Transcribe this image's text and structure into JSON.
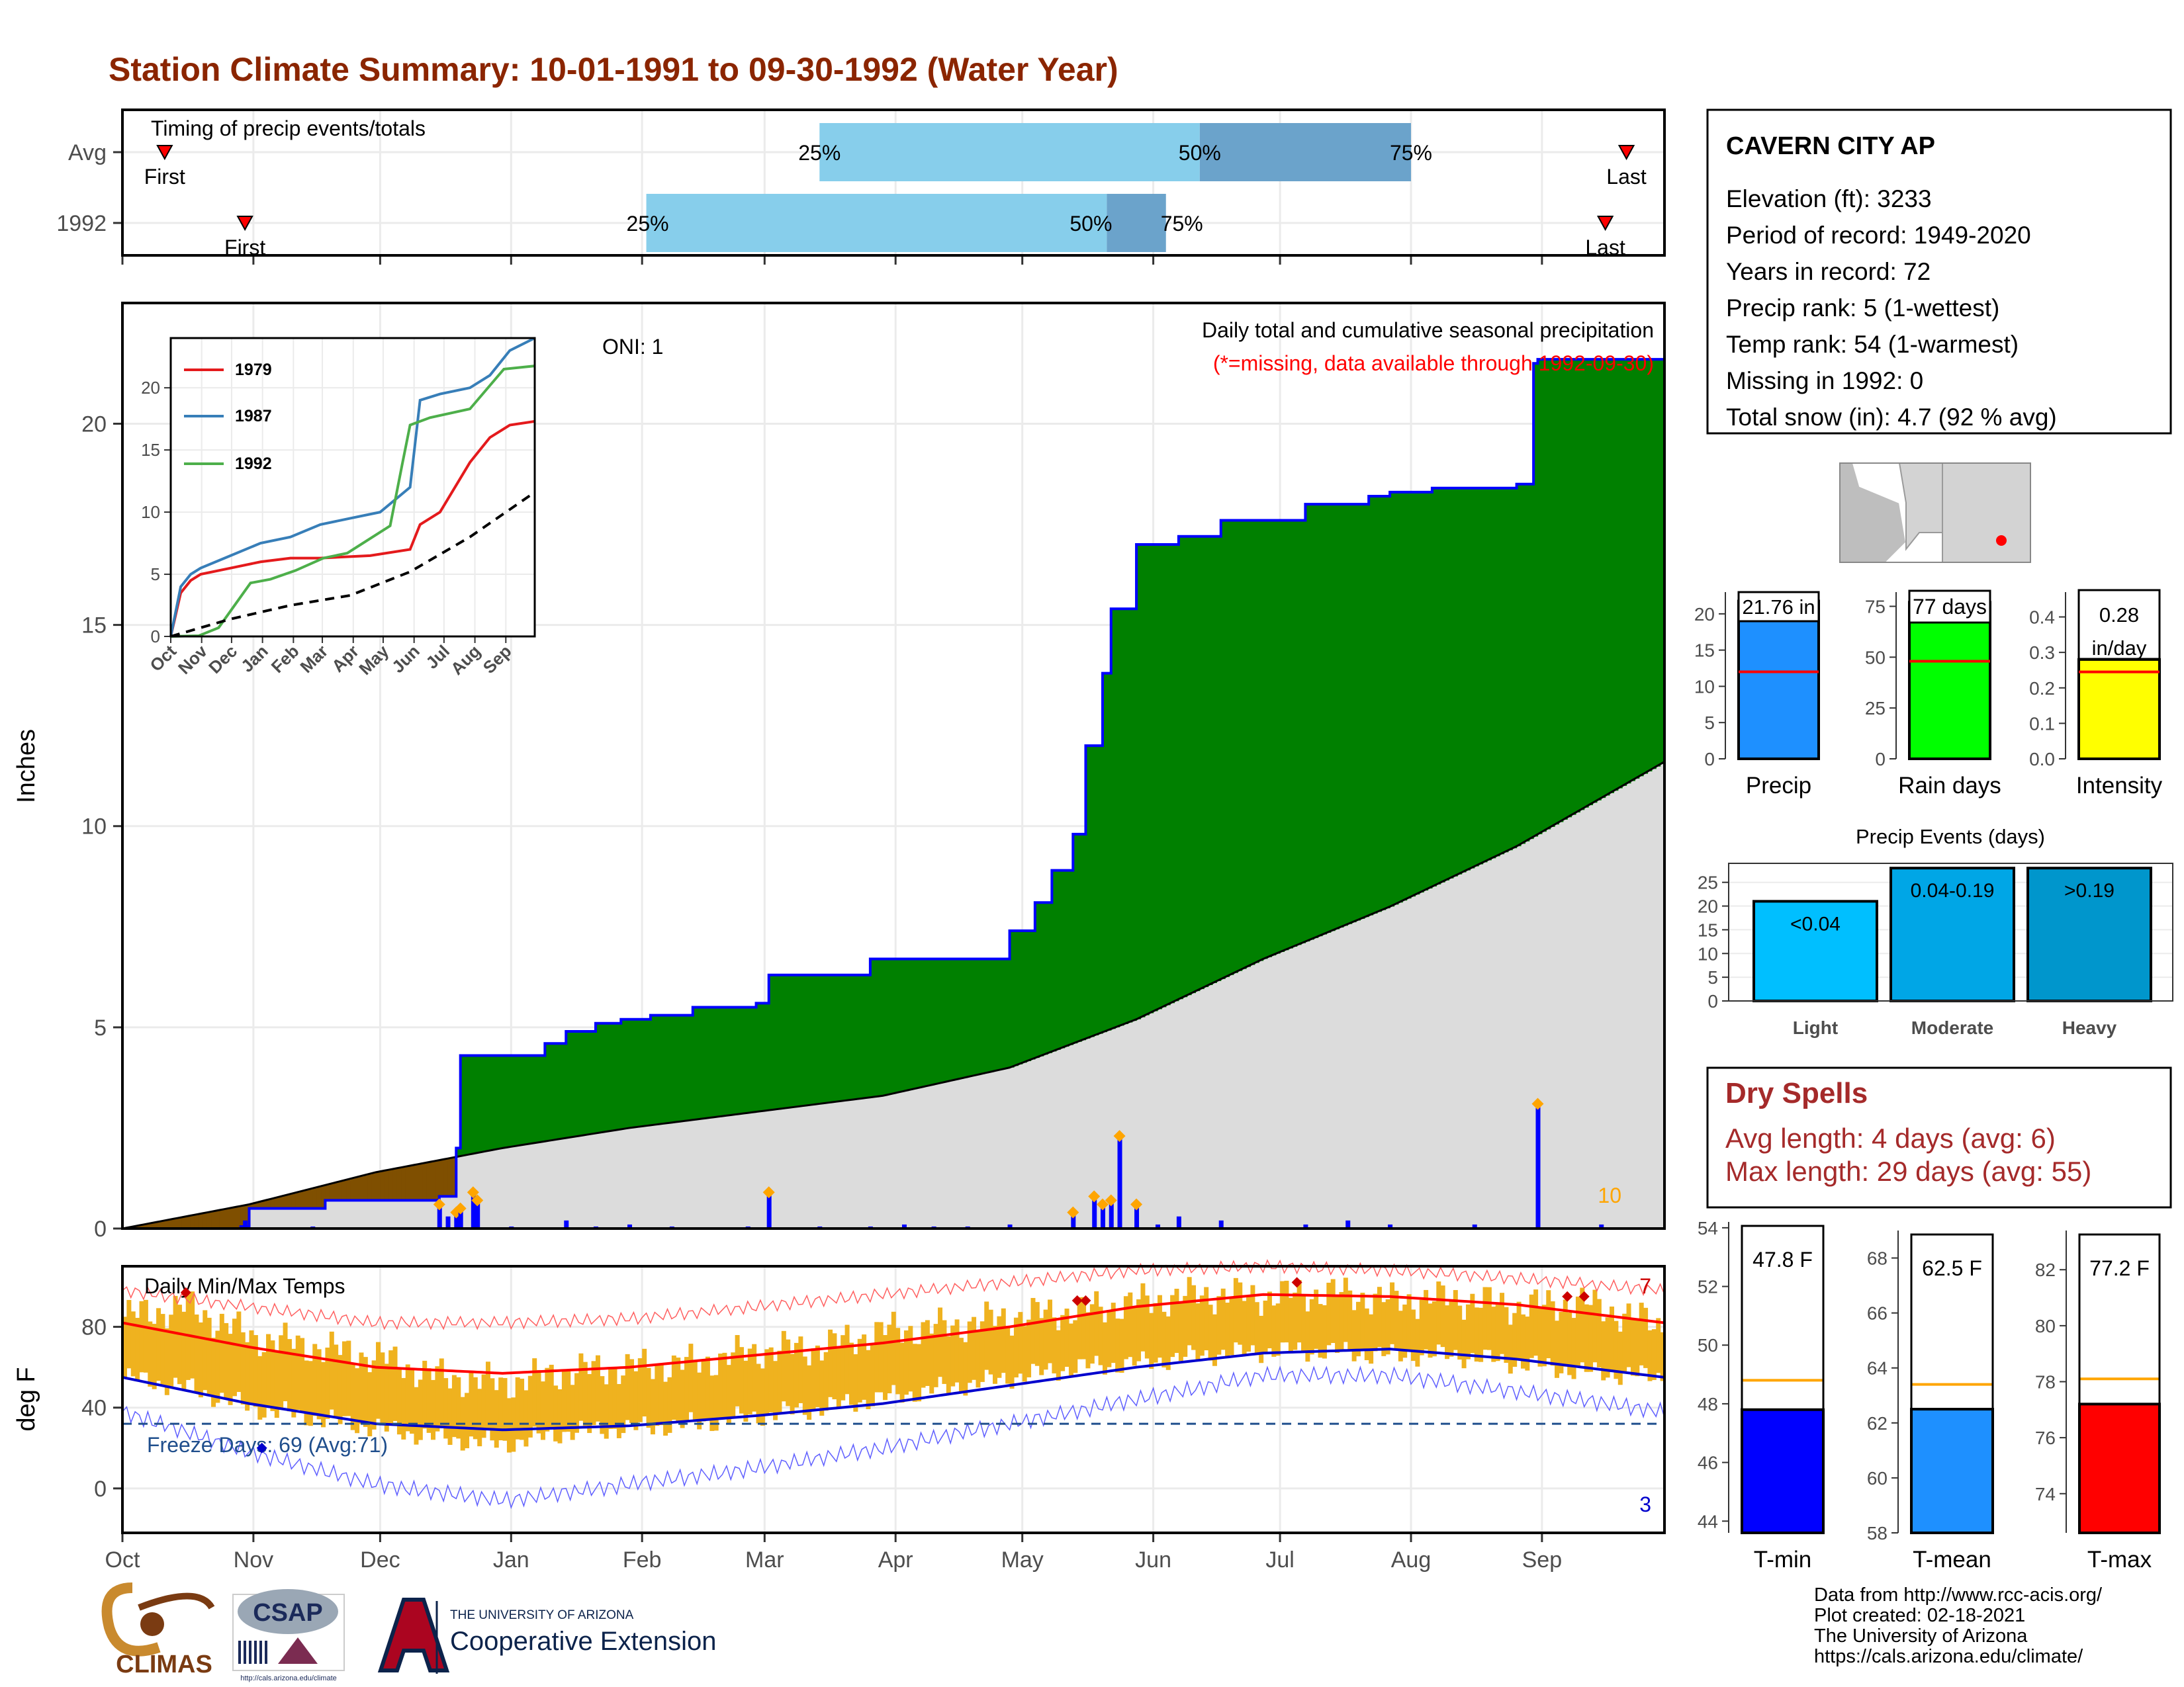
{
  "title": "Station Climate Summary: 10-01-1991 to 09-30-1992 (Water Year)",
  "colors": {
    "title": "#8B2500",
    "quartile_light": "#87CEEB",
    "quartile_dark": "#6BA3CB",
    "cumulative_fill": "#008000",
    "deficit_fill": "#7F4F00",
    "avg_fill": "#DCDCDC",
    "precip_bar": "#0000FF",
    "tmax_line": "#FF0000",
    "tmin_line": "#0000CD",
    "daily_range": "#EFB21F",
    "dry_spells": "#A52A2A"
  },
  "timing": {
    "title": "Timing of precip events/totals",
    "rows": [
      {
        "label": "Avg",
        "first_day": 10,
        "first_label": "First",
        "last_day": 356,
        "last_label": "Last",
        "q25_day": 165,
        "q50_day": 255,
        "q75_day": 305,
        "q25_label": "25%",
        "q50_label": "50%",
        "q75_label": "75%"
      },
      {
        "label": "1992",
        "first_day": 29,
        "first_label": "First",
        "last_day": 351,
        "last_label": "Last",
        "q25_day": 124,
        "q50_day": 233,
        "q75_day": 247,
        "q25_label": "25%",
        "q50_label": "50%",
        "q75_label": "75%"
      }
    ]
  },
  "chart_data": [
    {
      "type": "area",
      "title": "Daily total and cumulative seasonal precipitation",
      "subtitle": "(*=missing, data available through 1992-09-30)",
      "ylabel": "Inches",
      "ylim": [
        0,
        23
      ],
      "yticks": [
        0,
        5,
        10,
        15,
        20
      ],
      "xticks": [
        "Oct",
        "Nov",
        "Dec",
        "Jan",
        "Feb",
        "Mar",
        "Apr",
        "May",
        "Jun",
        "Jul",
        "Aug",
        "Sep"
      ],
      "oni_label": "ONI: 1",
      "count_label": "10",
      "cumulative_1992": {
        "day": [
          0,
          28,
          30,
          48,
          75,
          79,
          80,
          100,
          105,
          112,
          118,
          125,
          135,
          150,
          153,
          177,
          210,
          216,
          220,
          225,
          228,
          232,
          234,
          240,
          250,
          260,
          280,
          295,
          300,
          310,
          330,
          334,
          335,
          365
        ],
        "value": [
          0,
          0.05,
          0.5,
          0.7,
          0.8,
          2.0,
          4.3,
          4.6,
          4.9,
          5.1,
          5.2,
          5.3,
          5.5,
          5.6,
          6.3,
          6.7,
          7.4,
          8.1,
          8.9,
          9.8,
          12.0,
          13.8,
          15.4,
          17.0,
          17.2,
          17.6,
          18.0,
          18.2,
          18.3,
          18.4,
          18.5,
          21.5,
          21.6,
          21.76
        ]
      },
      "average_cumulative": {
        "day": [
          0,
          30,
          60,
          90,
          120,
          150,
          180,
          210,
          240,
          270,
          300,
          330,
          365
        ],
        "value": [
          0,
          0.6,
          1.4,
          2.0,
          2.5,
          2.9,
          3.3,
          4.0,
          5.2,
          6.7,
          8.0,
          9.5,
          11.6
        ]
      },
      "daily_precip": {
        "day": [
          29,
          45,
          75,
          77,
          79,
          80,
          83,
          84,
          92,
          105,
          112,
          120,
          130,
          148,
          153,
          165,
          177,
          185,
          192,
          200,
          210,
          225,
          230,
          232,
          234,
          236,
          240,
          245,
          250,
          260,
          280,
          290,
          300,
          320,
          335,
          350
        ],
        "value": [
          0.2,
          0.05,
          0.6,
          0.3,
          0.4,
          0.5,
          0.9,
          0.7,
          0.05,
          0.2,
          0.05,
          0.1,
          0.05,
          0.05,
          0.9,
          0.05,
          0.05,
          0.1,
          0.05,
          0.05,
          0.1,
          0.4,
          0.8,
          0.6,
          0.7,
          2.3,
          0.6,
          0.1,
          0.3,
          0.2,
          0.1,
          0.2,
          0.1,
          0.1,
          3.1,
          0.1
        ]
      },
      "inset": {
        "type": "line",
        "yticks": [
          0,
          5,
          10,
          15,
          20
        ],
        "xticks": [
          "Oct",
          "Nov",
          "Dec",
          "Jan",
          "Feb",
          "Mar",
          "Apr",
          "May",
          "Jun",
          "Jul",
          "Aug",
          "Sep"
        ],
        "series": [
          {
            "name": "1979",
            "color": "#E41A1C",
            "day": [
              0,
              10,
              20,
              30,
              60,
              90,
              120,
              150,
              200,
              240,
              250,
              270,
              300,
              320,
              340,
              365
            ],
            "value": [
              0,
              3.5,
              4.5,
              5.0,
              5.5,
              6.0,
              6.3,
              6.3,
              6.5,
              7.0,
              9.0,
              10.0,
              14.0,
              16.0,
              17.0,
              17.3
            ]
          },
          {
            "name": "1987",
            "color": "#377EB8",
            "day": [
              0,
              10,
              20,
              30,
              60,
              90,
              120,
              150,
              180,
              210,
              240,
              250,
              270,
              300,
              320,
              340,
              365
            ],
            "value": [
              0,
              4.0,
              5.0,
              5.5,
              6.5,
              7.5,
              8.0,
              9.0,
              9.5,
              10.0,
              12.0,
              19.0,
              19.5,
              20.0,
              21.0,
              23.0,
              24.0
            ]
          },
          {
            "name": "1992",
            "color": "#4DAF4A",
            "day": [
              0,
              28,
              48,
              80,
              100,
              125,
              153,
              177,
              220,
              232,
              240,
              260,
              300,
              334,
              365
            ],
            "value": [
              0,
              0.05,
              0.7,
              4.3,
              4.6,
              5.3,
              6.3,
              6.7,
              8.9,
              13.8,
              17.0,
              17.6,
              18.3,
              21.5,
              21.76
            ]
          },
          {
            "name": "",
            "color": "#000000",
            "dashed": true,
            "day": [
              0,
              60,
              120,
              180,
              240,
              300,
              365
            ],
            "value": [
              0,
              1.4,
              2.5,
              3.3,
              5.2,
              8.0,
              11.6
            ]
          }
        ]
      }
    },
    {
      "type": "line",
      "title": "Daily Min/Max Temps",
      "ylabel": "deg F",
      "ylim": [
        -22,
        110
      ],
      "yticks": [
        0,
        40,
        80
      ],
      "xticks": [
        "Oct",
        "Nov",
        "Dec",
        "Jan",
        "Feb",
        "Mar",
        "Apr",
        "May",
        "Jun",
        "Jul",
        "Aug",
        "Sep"
      ],
      "freeze_label": "Freeze Days: 69 (Avg:71)",
      "freeze_line": 32,
      "max_record_count": "7",
      "min_record_count": "3",
      "avg_tmax": {
        "day": [
          0,
          30,
          60,
          90,
          120,
          150,
          180,
          210,
          240,
          270,
          300,
          330,
          365
        ],
        "value": [
          82,
          70,
          60,
          57,
          60,
          66,
          72,
          80,
          90,
          96,
          95,
          91,
          82
        ]
      },
      "avg_tmin": {
        "day": [
          0,
          30,
          60,
          90,
          120,
          150,
          180,
          210,
          240,
          270,
          300,
          330,
          365
        ],
        "value": [
          55,
          42,
          32,
          29,
          31,
          36,
          42,
          51,
          60,
          67,
          69,
          64,
          55
        ]
      },
      "record_high": {
        "day": [
          0,
          30,
          60,
          90,
          120,
          150,
          180,
          210,
          240,
          270,
          300,
          330,
          365
        ],
        "value": [
          98,
          90,
          82,
          82,
          84,
          90,
          96,
          102,
          108,
          110,
          108,
          104,
          98
        ]
      },
      "record_low": {
        "day": [
          0,
          30,
          60,
          90,
          120,
          150,
          180,
          210,
          240,
          270,
          300,
          330,
          365
        ],
        "value": [
          38,
          18,
          2,
          -6,
          2,
          10,
          20,
          32,
          44,
          56,
          56,
          48,
          38
        ]
      },
      "obs_tmax_approx": {
        "day": [
          0,
          15,
          30,
          45,
          60,
          75,
          90,
          105,
          120,
          135,
          150,
          165,
          180,
          195,
          210,
          225,
          240,
          255,
          270,
          285,
          300,
          315,
          330,
          345,
          365
        ],
        "value": [
          85,
          90,
          75,
          70,
          65,
          55,
          52,
          58,
          60,
          62,
          68,
          70,
          78,
          80,
          85,
          88,
          92,
          96,
          95,
          97,
          93,
          94,
          90,
          92,
          80
        ]
      },
      "obs_tmin_approx": {
        "day": [
          0,
          15,
          30,
          45,
          60,
          75,
          90,
          105,
          120,
          135,
          150,
          165,
          180,
          195,
          210,
          225,
          240,
          255,
          270,
          285,
          300,
          315,
          330,
          345,
          365
        ],
        "value": [
          55,
          50,
          40,
          35,
          30,
          25,
          22,
          28,
          30,
          32,
          36,
          40,
          45,
          50,
          55,
          60,
          62,
          66,
          68,
          68,
          66,
          66,
          62,
          58,
          55
        ]
      }
    },
    {
      "type": "bar",
      "panel": "precip",
      "categories": [
        "Precip"
      ],
      "values": [
        21.76
      ],
      "avg": 12.0,
      "value_label": "21.76 in",
      "ylim": [
        0,
        23
      ],
      "yticks": [
        0,
        5,
        10,
        15,
        20
      ],
      "color": "#1E90FF"
    },
    {
      "type": "bar",
      "panel": "rain_days",
      "categories": [
        "Rain days"
      ],
      "values": [
        77
      ],
      "avg": 48,
      "value_label": "77 days",
      "ylim": [
        0,
        82
      ],
      "yticks": [
        0,
        25,
        50,
        75
      ],
      "color": "#00FF00"
    },
    {
      "type": "bar",
      "panel": "intensity",
      "categories": [
        "Intensity"
      ],
      "values": [
        0.28
      ],
      "avg": 0.245,
      "value_label_1": "0.28",
      "value_label_2": "in/day",
      "ylim": [
        0,
        0.47
      ],
      "yticks": [
        "0.0",
        "0.1",
        "0.2",
        "0.3",
        "0.4"
      ],
      "color": "#FFFF00"
    },
    {
      "type": "bar",
      "panel": "precip_events",
      "title": "Precip Events (days)",
      "categories": [
        "Light",
        "Moderate",
        "Heavy"
      ],
      "values": [
        21,
        28,
        28
      ],
      "value_labels": [
        "<0.04",
        "0.04-0.19",
        ">0.19"
      ],
      "colors": [
        "#00BFFF",
        "#00A6E6",
        "#0096CC"
      ],
      "ylim": [
        0,
        29
      ],
      "yticks": [
        0,
        5,
        10,
        15,
        20,
        25
      ]
    },
    {
      "type": "bar",
      "panel": "tmin",
      "categories": [
        "T-min"
      ],
      "values": [
        47.8
      ],
      "avg": 48.8,
      "value_label": "47.8 F",
      "ylim": [
        43.6,
        54.2
      ],
      "yticks": [
        44,
        46,
        48,
        50,
        52,
        54
      ],
      "color": "#0000FF"
    },
    {
      "type": "bar",
      "panel": "tmean",
      "categories": [
        "T-mean"
      ],
      "values": [
        62.5
      ],
      "avg": 63.4,
      "value_label": "62.5 F",
      "ylim": [
        58.0,
        69.0
      ],
      "yticks": [
        58,
        60,
        62,
        64,
        66,
        68
      ],
      "color": "#1E90FF"
    },
    {
      "type": "bar",
      "panel": "tmax",
      "categories": [
        "T-max"
      ],
      "values": [
        77.2
      ],
      "avg": 78.1,
      "value_label": "77.2 F",
      "ylim": [
        72.6,
        83.4
      ],
      "yticks": [
        74,
        76,
        78,
        80,
        82
      ],
      "color": "#FF0000"
    }
  ],
  "station": {
    "name": "CAVERN CITY AP",
    "lines": [
      "Elevation (ft): 3233",
      "Period of record: 1949-2020",
      "Years in record: 72",
      "Precip rank: 5 (1-wettest)",
      "Temp rank: 54 (1-warmest)",
      "Missing in 1992: 0",
      "Total snow (in): 4.7 (92 % avg)"
    ]
  },
  "dry_spells": {
    "title": "Dry Spells",
    "avg_line": "Avg length: 4 days (avg: 6)",
    "max_line": "Max length: 29 days (avg: 55)"
  },
  "footer": {
    "lines": [
      "Data from http://www.rcc-acis.org/",
      "Plot created: 02-18-2021",
      "The University of Arizona",
      "https://cals.arizona.edu/climate/"
    ]
  },
  "logos": {
    "climas": "CLIMAS",
    "csap": "CSAP",
    "csap_url": "http://cals.arizona.edu/climate",
    "ua_top": "THE UNIVERSITY OF ARIZONA",
    "ua_bottom": "Cooperative Extension"
  },
  "icons": [
    "triangle-marker-icon",
    "map-locator-icon"
  ]
}
